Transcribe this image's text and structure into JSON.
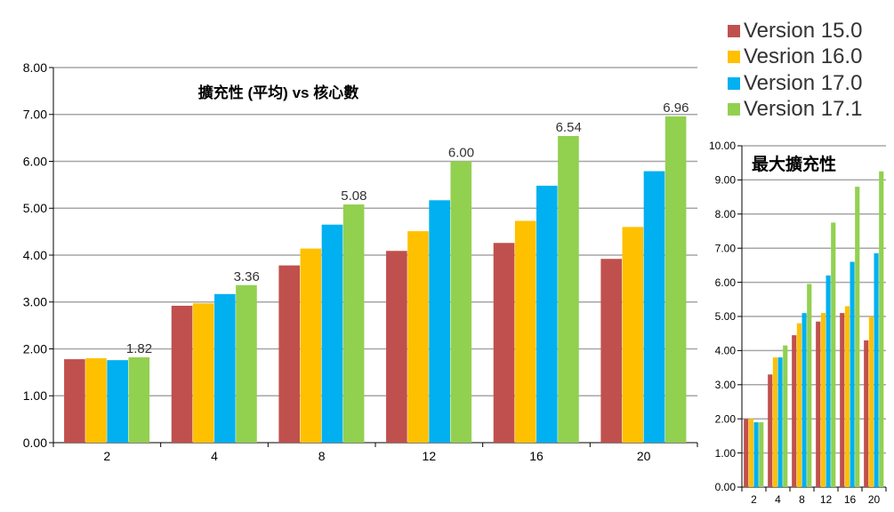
{
  "series_colors": [
    "#c0504d",
    "#ffc000",
    "#00b0f0",
    "#92d050"
  ],
  "chart_data": [
    {
      "type": "bar",
      "title": "擴充性 (平均) vs 核心數",
      "xlabel": "",
      "ylabel": "",
      "categories": [
        "2",
        "4",
        "8",
        "12",
        "16",
        "20"
      ],
      "ylim": [
        0,
        8
      ],
      "y_ticks": [
        "0.00",
        "1.00",
        "2.00",
        "3.00",
        "4.00",
        "5.00",
        "6.00",
        "7.00",
        "8.00"
      ],
      "grid": true,
      "legend_position": "top-right",
      "series": [
        {
          "name": "Version 15.0",
          "values": [
            1.78,
            2.92,
            3.78,
            4.09,
            4.26,
            3.92
          ]
        },
        {
          "name": "Vesrion 16.0",
          "values": [
            1.8,
            2.97,
            4.14,
            4.51,
            4.73,
            4.6
          ]
        },
        {
          "name": "Version 17.0",
          "values": [
            1.76,
            3.17,
            4.65,
            5.17,
            5.48,
            5.79
          ]
        },
        {
          "name": "Version 17.1",
          "values": [
            1.82,
            3.36,
            5.08,
            6.0,
            6.54,
            6.96
          ]
        }
      ],
      "data_labels": [
        "1.82",
        "3.36",
        "5.08",
        "6.00",
        "6.54",
        "6.96"
      ]
    },
    {
      "type": "bar",
      "title": "最大擴充性",
      "xlabel": "",
      "ylabel": "",
      "categories": [
        "2",
        "4",
        "8",
        "12",
        "16",
        "20"
      ],
      "ylim": [
        0,
        10
      ],
      "y_ticks": [
        "0.00",
        "1.00",
        "2.00",
        "3.00",
        "4.00",
        "5.00",
        "6.00",
        "7.00",
        "8.00",
        "9.00",
        "10.00"
      ],
      "grid": true,
      "series": [
        {
          "name": "Version 15.0",
          "values": [
            2.0,
            3.3,
            4.45,
            4.85,
            5.1,
            4.3
          ]
        },
        {
          "name": "Vesrion 16.0",
          "values": [
            2.0,
            3.8,
            4.8,
            5.1,
            5.3,
            5.0
          ]
        },
        {
          "name": "Version 17.0",
          "values": [
            1.9,
            3.8,
            5.1,
            6.2,
            6.6,
            6.85
          ]
        },
        {
          "name": "Version 17.1",
          "values": [
            1.9,
            4.15,
            5.95,
            7.75,
            8.8,
            9.25
          ]
        }
      ]
    }
  ]
}
